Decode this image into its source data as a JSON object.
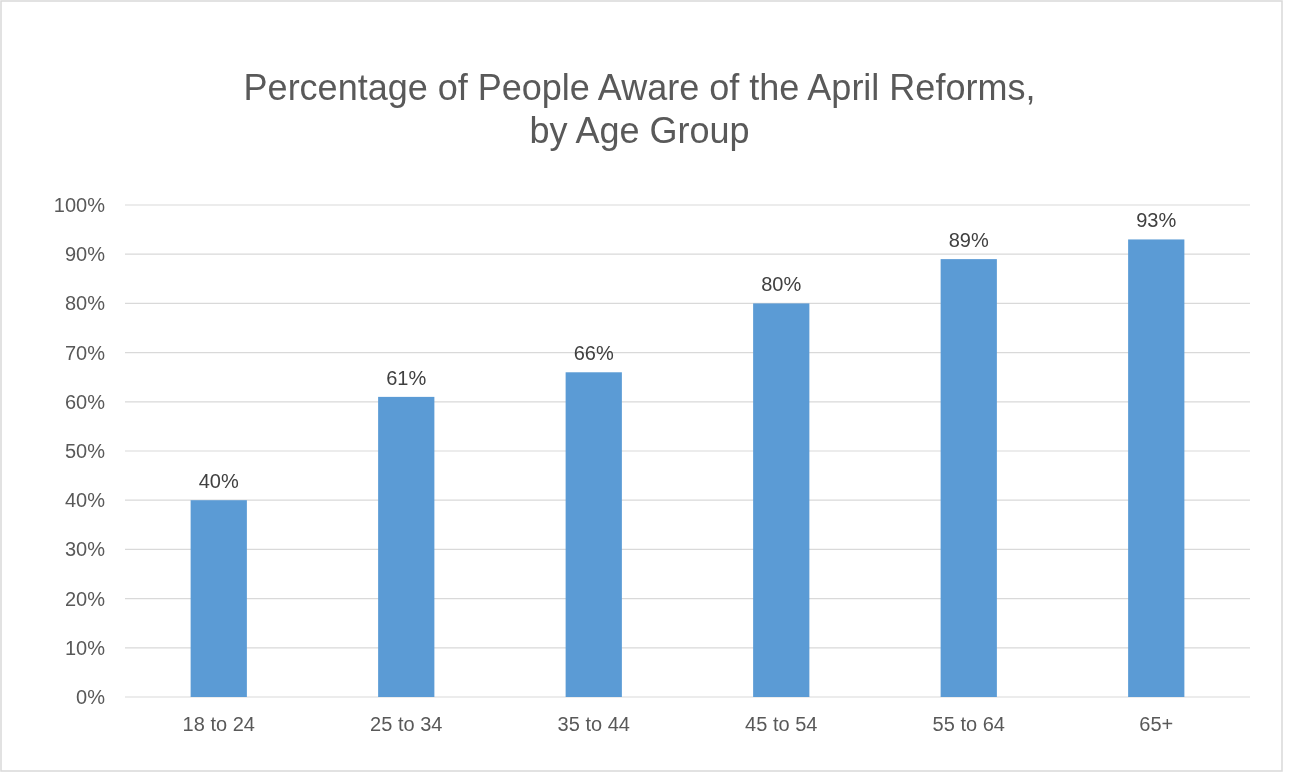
{
  "chart_data": {
    "type": "bar",
    "title": "Percentage of People Aware of the April Reforms,\nby Age Group",
    "categories": [
      "18 to 24",
      "25 to 34",
      "35 to 44",
      "45 to 54",
      "55 to 64",
      "65+"
    ],
    "values": [
      40,
      61,
      66,
      80,
      89,
      93
    ],
    "value_labels": [
      "40%",
      "61%",
      "66%",
      "80%",
      "89%",
      "93%"
    ],
    "color": "#5b9bd5",
    "ylim": [
      0,
      100
    ],
    "yticks": [
      {
        "value": 0,
        "label": "0%"
      },
      {
        "value": 10,
        "label": "10%"
      },
      {
        "value": 20,
        "label": "20%"
      },
      {
        "value": 30,
        "label": "30%"
      },
      {
        "value": 40,
        "label": "40%"
      },
      {
        "value": 50,
        "label": "50%"
      },
      {
        "value": 60,
        "label": "60%"
      },
      {
        "value": 70,
        "label": "70%"
      },
      {
        "value": 80,
        "label": "80%"
      },
      {
        "value": 90,
        "label": "90%"
      },
      {
        "value": 100,
        "label": "100%"
      }
    ],
    "grid": "y"
  }
}
